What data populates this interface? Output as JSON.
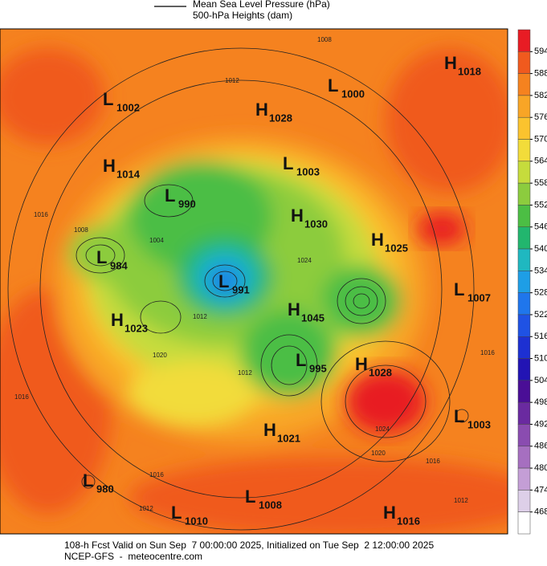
{
  "legend": {
    "line_label": "Mean Sea Level Pressure (hPa)",
    "subtitle": "500-hPa Heights (dam)"
  },
  "centers": [
    {
      "kind": "H",
      "value": "1018"
    },
    {
      "kind": "L",
      "value": "1000"
    },
    {
      "kind": "L",
      "value": "1002"
    },
    {
      "kind": "H",
      "value": "1028"
    },
    {
      "kind": "L",
      "value": "1003"
    },
    {
      "kind": "H",
      "value": "1014"
    },
    {
      "kind": "L",
      "value": "990"
    },
    {
      "kind": "H",
      "value": "1030"
    },
    {
      "kind": "H",
      "value": "1025"
    },
    {
      "kind": "L",
      "value": "984"
    },
    {
      "kind": "L",
      "value": "991"
    },
    {
      "kind": "L",
      "value": "1007"
    },
    {
      "kind": "H",
      "value": "1045"
    },
    {
      "kind": "H",
      "value": "1023"
    },
    {
      "kind": "L",
      "value": "995"
    },
    {
      "kind": "H",
      "value": "1028"
    },
    {
      "kind": "L",
      "value": "1003"
    },
    {
      "kind": "H",
      "value": "1021"
    },
    {
      "kind": "L",
      "value": "980"
    },
    {
      "kind": "L",
      "value": "1008"
    },
    {
      "kind": "L",
      "value": "1010"
    },
    {
      "kind": "H",
      "value": "1016"
    }
  ],
  "contour_labels": [
    "1008",
    "1012",
    "1016",
    "1008",
    "1004",
    "1024",
    "1012",
    "1020",
    "1016",
    "1012",
    "1016",
    "1024",
    "1020",
    "1016",
    "1016",
    "1012",
    "1012"
  ],
  "colorbar": {
    "ticks": [
      594,
      588,
      582,
      576,
      570,
      564,
      558,
      552,
      546,
      540,
      534,
      528,
      522,
      516,
      510,
      504,
      498,
      492,
      486,
      480,
      474,
      468
    ],
    "colors": [
      "#e81c24",
      "#f05a1e",
      "#f5821f",
      "#f8a526",
      "#fbc32e",
      "#f2dc3a",
      "#c6dc3c",
      "#8ccc3e",
      "#4cbe44",
      "#22b66e",
      "#1fb8c0",
      "#1e9ee6",
      "#1f76ec",
      "#1f52e4",
      "#1d30d2",
      "#2214b4",
      "#4a0e96",
      "#6a2aa0",
      "#8a4cb0",
      "#a66fc0",
      "#c49ed6",
      "#ddcfe8",
      "#ffffff"
    ]
  },
  "footer": {
    "line1": "108-h Fcst Valid on Sun Sep  7 00:00:00 2025, Initialized on Tue Sep  2 12:00:00 2025",
    "line2": "NCEP-GFS  -  meteocentre.com"
  }
}
